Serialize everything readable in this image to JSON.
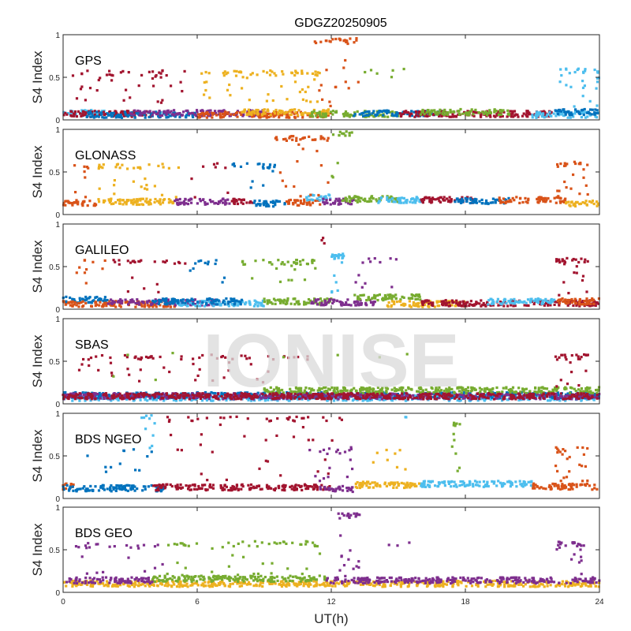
{
  "chart_data": {
    "type": "scatter",
    "title": "GDGZ20250905",
    "xlabel": "UT(h)",
    "ylabel": "S4 Index",
    "xlim": [
      0,
      24
    ],
    "ylim": [
      0,
      1
    ],
    "xticks": [
      0,
      6,
      12,
      18,
      24
    ],
    "xtick_labels": [
      "0",
      "6",
      "12",
      "18",
      "24"
    ],
    "yticks": [
      0,
      0.5,
      1
    ],
    "ytick_labels": [
      "0",
      "0.5",
      "1"
    ],
    "grid": false,
    "watermark": "IONISE",
    "palette": {
      "blue": "#0072BD",
      "orange": "#D95319",
      "yellow": "#EDB120",
      "purple": "#7E2F8E",
      "green": "#77AC30",
      "lightblue": "#4DBEEE",
      "darkred": "#A2142F"
    },
    "panels": [
      {
        "label": "GPS",
        "baseline": [
          {
            "color": "lightblue",
            "x": [
              0,
              2
            ],
            "level": 0.08
          },
          {
            "color": "darkred",
            "x": [
              0,
              4
            ],
            "level": 0.07
          },
          {
            "color": "blue",
            "x": [
              1,
              6
            ],
            "level": 0.06
          },
          {
            "color": "purple",
            "x": [
              3,
              9
            ],
            "level": 0.08
          },
          {
            "color": "orange",
            "x": [
              6,
              12
            ],
            "level": 0.06
          },
          {
            "color": "yellow",
            "x": [
              8,
              12
            ],
            "level": 0.09
          },
          {
            "color": "green",
            "x": [
              11,
              15
            ],
            "level": 0.07
          },
          {
            "color": "blue",
            "x": [
              13,
              17
            ],
            "level": 0.08
          },
          {
            "color": "darkred",
            "x": [
              15,
              22
            ],
            "level": 0.07
          },
          {
            "color": "green",
            "x": [
              16,
              20
            ],
            "level": 0.09
          },
          {
            "color": "lightblue",
            "x": [
              21,
              24
            ],
            "level": 0.06
          },
          {
            "color": "blue",
            "x": [
              22,
              24
            ],
            "level": 0.09
          }
        ],
        "scatter_groups": [
          {
            "color": "darkred",
            "x": [
              0.4,
              5.5
            ],
            "y": [
              0.2,
              0.58
            ],
            "n": 45
          },
          {
            "color": "yellow",
            "x": [
              5.8,
              11.5
            ],
            "y": [
              0.2,
              0.58
            ],
            "n": 70
          },
          {
            "color": "orange",
            "x": [
              11.2,
              13.3
            ],
            "y": [
              0.15,
              0.96
            ],
            "n": 35
          },
          {
            "color": "green",
            "x": [
              13.5,
              15.5
            ],
            "y": [
              0.5,
              0.6
            ],
            "n": 6
          },
          {
            "color": "lightblue",
            "x": [
              22,
              24
            ],
            "y": [
              0.15,
              0.6
            ],
            "n": 30
          }
        ]
      },
      {
        "label": "GLONASS",
        "baseline": [
          {
            "color": "orange",
            "x": [
              0,
              1.5
            ],
            "level": 0.14
          },
          {
            "color": "yellow",
            "x": [
              1.5,
              5
            ],
            "level": 0.15
          },
          {
            "color": "purple",
            "x": [
              5,
              7.5
            ],
            "level": 0.15
          },
          {
            "color": "darkred",
            "x": [
              7.5,
              8.5
            ],
            "level": 0.15
          },
          {
            "color": "blue",
            "x": [
              8.5,
              10
            ],
            "level": 0.13
          },
          {
            "color": "orange",
            "x": [
              10,
              11.5
            ],
            "level": 0.14
          },
          {
            "color": "lightblue",
            "x": [
              10.8,
              12
            ],
            "level": 0.2
          },
          {
            "color": "purple",
            "x": [
              11.5,
              13
            ],
            "level": 0.15
          },
          {
            "color": "green",
            "x": [
              12.5,
              15
            ],
            "level": 0.18
          },
          {
            "color": "lightblue",
            "x": [
              14,
              16
            ],
            "level": 0.17
          },
          {
            "color": "darkred",
            "x": [
              16,
              18.5
            ],
            "level": 0.17
          },
          {
            "color": "blue",
            "x": [
              17.5,
              20
            ],
            "level": 0.16
          },
          {
            "color": "orange",
            "x": [
              19.5,
              22.5
            ],
            "level": 0.17
          },
          {
            "color": "yellow",
            "x": [
              22.5,
              24
            ],
            "level": 0.13
          }
        ],
        "scatter_groups": [
          {
            "color": "orange",
            "x": [
              0.5,
              1.2
            ],
            "y": [
              0.2,
              0.6
            ],
            "n": 8
          },
          {
            "color": "yellow",
            "x": [
              1.5,
              5.5
            ],
            "y": [
              0.2,
              0.6
            ],
            "n": 35
          },
          {
            "color": "darkred",
            "x": [
              5.5,
              7.5
            ],
            "y": [
              0.2,
              0.6
            ],
            "n": 8
          },
          {
            "color": "blue",
            "x": [
              7.5,
              9.5
            ],
            "y": [
              0.3,
              0.6
            ],
            "n": 20
          },
          {
            "color": "orange",
            "x": [
              9.5,
              12
            ],
            "y": [
              0.2,
              0.92
            ],
            "n": 40
          },
          {
            "color": "green",
            "x": [
              12,
              13
            ],
            "y": [
              0.3,
              0.98
            ],
            "n": 15
          },
          {
            "color": "orange",
            "x": [
              22,
              23.5
            ],
            "y": [
              0.2,
              0.62
            ],
            "n": 25
          }
        ]
      },
      {
        "label": "GALILEO",
        "baseline": [
          {
            "color": "blue",
            "x": [
              0,
              2
            ],
            "level": 0.11
          },
          {
            "color": "orange",
            "x": [
              0,
              5
            ],
            "level": 0.06
          },
          {
            "color": "purple",
            "x": [
              2,
              7
            ],
            "level": 0.08
          },
          {
            "color": "lightblue",
            "x": [
              5,
              9
            ],
            "level": 0.07
          },
          {
            "color": "blue",
            "x": [
              4,
              8
            ],
            "level": 0.09
          },
          {
            "color": "green",
            "x": [
              9,
              12
            ],
            "level": 0.09
          },
          {
            "color": "purple",
            "x": [
              11,
              14
            ],
            "level": 0.08
          },
          {
            "color": "green",
            "x": [
              13,
              16
            ],
            "level": 0.14
          },
          {
            "color": "yellow",
            "x": [
              14.5,
              18
            ],
            "level": 0.06
          },
          {
            "color": "darkred",
            "x": [
              16,
              24
            ],
            "level": 0.07
          },
          {
            "color": "lightblue",
            "x": [
              19,
              22
            ],
            "level": 0.09
          },
          {
            "color": "orange",
            "x": [
              22,
              24
            ],
            "level": 0.09
          }
        ],
        "scatter_groups": [
          {
            "color": "orange",
            "x": [
              0.5,
              2
            ],
            "y": [
              0.25,
              0.58
            ],
            "n": 10
          },
          {
            "color": "darkred",
            "x": [
              2,
              5.5
            ],
            "y": [
              0.2,
              0.58
            ],
            "n": 25
          },
          {
            "color": "blue",
            "x": [
              5.5,
              7.5
            ],
            "y": [
              0.3,
              0.58
            ],
            "n": 12
          },
          {
            "color": "green",
            "x": [
              8,
              11.5
            ],
            "y": [
              0.3,
              0.58
            ],
            "n": 40
          },
          {
            "color": "darkred",
            "x": [
              11.5,
              12
            ],
            "y": [
              0.6,
              0.84
            ],
            "n": 3
          },
          {
            "color": "lightblue",
            "x": [
              12,
              12.6
            ],
            "y": [
              0.15,
              0.65
            ],
            "n": 25
          },
          {
            "color": "purple",
            "x": [
              12.8,
              15
            ],
            "y": [
              0.2,
              0.6
            ],
            "n": 12
          },
          {
            "color": "darkred",
            "x": [
              22,
              23.5
            ],
            "y": [
              0.15,
              0.6
            ],
            "n": 30
          }
        ]
      },
      {
        "label": "SBAS",
        "baseline": [
          {
            "color": "lightblue",
            "x": [
              0,
              24
            ],
            "level": 0.07
          },
          {
            "color": "blue",
            "x": [
              0,
              24
            ],
            "level": 0.1
          },
          {
            "color": "purple",
            "x": [
              0,
              24
            ],
            "level": 0.09
          },
          {
            "color": "green",
            "x": [
              9,
              24
            ],
            "level": 0.16
          },
          {
            "color": "darkred",
            "x": [
              0,
              24
            ],
            "level": 0.09
          }
        ],
        "scatter_groups": [
          {
            "color": "darkred",
            "x": [
              0.5,
              11.5
            ],
            "y": [
              0.25,
              0.58
            ],
            "n": 70
          },
          {
            "color": "green",
            "x": [
              1,
              16.5
            ],
            "y": [
              0.2,
              0.6
            ],
            "n": 8
          },
          {
            "color": "darkred",
            "x": [
              22,
              23.5
            ],
            "y": [
              0.2,
              0.58
            ],
            "n": 25
          }
        ]
      },
      {
        "label": "BDS NGEO",
        "baseline": [
          {
            "color": "orange",
            "x": [
              0,
              0.5
            ],
            "level": 0.14
          },
          {
            "color": "blue",
            "x": [
              0,
              4.5
            ],
            "level": 0.12
          },
          {
            "color": "darkred",
            "x": [
              4,
              12
            ],
            "level": 0.13
          },
          {
            "color": "purple",
            "x": [
              11.5,
              13
            ],
            "level": 0.11
          },
          {
            "color": "yellow",
            "x": [
              13,
              16
            ],
            "level": 0.16
          },
          {
            "color": "lightblue",
            "x": [
              16,
              21
            ],
            "level": 0.17
          },
          {
            "color": "orange",
            "x": [
              21,
              24
            ],
            "level": 0.14
          }
        ],
        "scatter_groups": [
          {
            "color": "blue",
            "x": [
              0.5,
              4
            ],
            "y": [
              0.3,
              0.58
            ],
            "n": 12
          },
          {
            "color": "lightblue",
            "x": [
              3.5,
              4.2
            ],
            "y": [
              0.4,
              0.98
            ],
            "n": 10
          },
          {
            "color": "darkred",
            "x": [
              4.5,
              12.5
            ],
            "y": [
              0.2,
              0.96
            ],
            "n": 55
          },
          {
            "color": "purple",
            "x": [
              11,
              13
            ],
            "y": [
              0.2,
              0.6
            ],
            "n": 20
          },
          {
            "color": "yellow",
            "x": [
              13.5,
              15.5
            ],
            "y": [
              0.3,
              0.58
            ],
            "n": 8
          },
          {
            "color": "lightblue",
            "x": [
              15.3,
              15.5
            ],
            "y": [
              0.88,
              0.98
            ],
            "n": 2
          },
          {
            "color": "green",
            "x": [
              17.4,
              17.8
            ],
            "y": [
              0.25,
              0.92
            ],
            "n": 12
          },
          {
            "color": "orange",
            "x": [
              22,
              23.5
            ],
            "y": [
              0.2,
              0.6
            ],
            "n": 25
          }
        ]
      },
      {
        "label": "BDS GEO",
        "baseline": [
          {
            "color": "yellow",
            "x": [
              0,
              24
            ],
            "level": 0.1
          },
          {
            "color": "purple",
            "x": [
              0,
              4
            ],
            "level": 0.14
          },
          {
            "color": "green",
            "x": [
              4,
              11.8
            ],
            "level": 0.16
          },
          {
            "color": "purple",
            "x": [
              11.8,
              24
            ],
            "level": 0.14
          }
        ],
        "scatter_groups": [
          {
            "color": "purple",
            "x": [
              0.5,
              4.5
            ],
            "y": [
              0.2,
              0.58
            ],
            "n": 25
          },
          {
            "color": "green",
            "x": [
              4.5,
              11.5
            ],
            "y": [
              0.2,
              0.6
            ],
            "n": 55
          },
          {
            "color": "purple",
            "x": [
              12.3,
              13.3
            ],
            "y": [
              0.15,
              0.93
            ],
            "n": 30
          },
          {
            "color": "purple",
            "x": [
              14.5,
              15.5
            ],
            "y": [
              0.55,
              0.6
            ],
            "n": 3
          },
          {
            "color": "purple",
            "x": [
              22,
              23.5
            ],
            "y": [
              0.2,
              0.6
            ],
            "n": 25
          }
        ]
      }
    ]
  }
}
